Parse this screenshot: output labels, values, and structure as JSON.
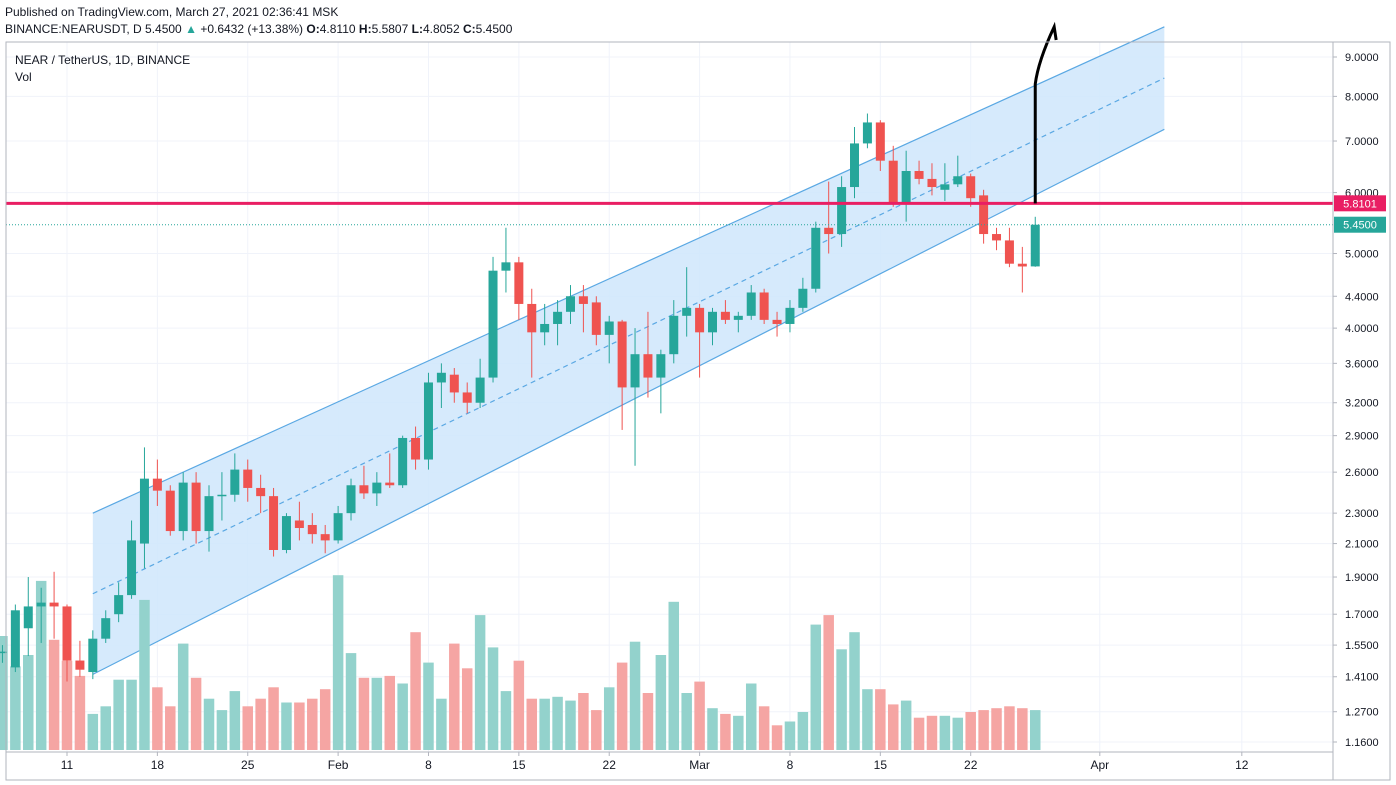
{
  "header": {
    "published": "Published on TradingView.com, March 27, 2021 02:36:41 MSK",
    "symbol": "BINANCE:NEARUSDT, D",
    "last": "5.4500",
    "change_arrow": "▲",
    "change": "+0.6432 (+13.38%)",
    "o_label": "O:",
    "o": "4.8110",
    "h_label": "H:",
    "h": "5.5807",
    "l_label": "L:",
    "l": "4.8052",
    "c_label": "C:",
    "c": "5.4500"
  },
  "legend": {
    "title": "NEAR / TetherUS, 1D, BINANCE",
    "volume": "Vol"
  },
  "colors": {
    "up": "#26a69a",
    "down": "#ef5350",
    "up_volume": "#93d2cc",
    "down_volume": "#f5a5a3",
    "channel_fill": "#cfe6fb",
    "channel_line": "#5aa8e3",
    "resistance": "#e91e63",
    "projection": "#000000"
  },
  "chart_data": {
    "type": "candlestick",
    "scale": "log",
    "price_ticks": [
      "9.0000",
      "8.0000",
      "7.0000",
      "6.0000",
      "5.0000",
      "4.4000",
      "4.0000",
      "3.6000",
      "3.2000",
      "2.9000",
      "2.6000",
      "2.3000",
      "2.1000",
      "1.9000",
      "1.7000",
      "1.5500",
      "1.4100",
      "1.2700",
      "1.1600"
    ],
    "x_ticks": [
      "11",
      "18",
      "25",
      "Feb",
      "8",
      "15",
      "22",
      "Mar",
      "8",
      "15",
      "22",
      "Apr",
      "12"
    ],
    "price_labels": [
      {
        "value": "5.8101",
        "price": 5.8101,
        "color": "#e91e63"
      },
      {
        "value": "5.4500",
        "price": 5.45,
        "color": "#26a69a"
      }
    ],
    "candles": [
      {
        "d": "2021-01-06",
        "o": 1.52,
        "h": 1.55,
        "l": 1.47,
        "c": 1.52,
        "v": 0.6
      },
      {
        "d": "2021-01-07",
        "o": 1.45,
        "h": 1.75,
        "l": 1.43,
        "c": 1.72,
        "v": 0.44
      },
      {
        "d": "2021-01-08",
        "o": 1.63,
        "h": 1.9,
        "l": 1.5,
        "c": 1.74,
        "v": 0.5
      },
      {
        "d": "2021-01-09",
        "o": 1.74,
        "h": 1.84,
        "l": 1.56,
        "c": 1.76,
        "v": 0.89
      },
      {
        "d": "2021-01-10",
        "o": 1.76,
        "h": 1.93,
        "l": 1.58,
        "c": 1.74,
        "v": 0.58
      },
      {
        "d": "2021-01-11",
        "o": 1.74,
        "h": 1.75,
        "l": 1.39,
        "c": 1.48,
        "v": 0.47
      },
      {
        "d": "2021-01-12",
        "o": 1.48,
        "h": 1.57,
        "l": 1.41,
        "c": 1.44,
        "v": 0.39
      },
      {
        "d": "2021-01-13",
        "o": 1.43,
        "h": 1.62,
        "l": 1.4,
        "c": 1.58,
        "v": 0.19
      },
      {
        "d": "2021-01-14",
        "o": 1.58,
        "h": 1.72,
        "l": 1.56,
        "c": 1.68,
        "v": 0.23
      },
      {
        "d": "2021-01-15",
        "o": 1.7,
        "h": 1.87,
        "l": 1.66,
        "c": 1.8,
        "v": 0.37
      },
      {
        "d": "2021-01-16",
        "o": 1.8,
        "h": 2.25,
        "l": 1.78,
        "c": 2.12,
        "v": 0.37
      },
      {
        "d": "2021-01-17",
        "o": 2.1,
        "h": 2.8,
        "l": 1.95,
        "c": 2.55,
        "v": 0.79
      },
      {
        "d": "2021-01-18",
        "o": 2.55,
        "h": 2.7,
        "l": 2.35,
        "c": 2.46,
        "v": 0.33
      },
      {
        "d": "2021-01-19",
        "o": 2.46,
        "h": 2.5,
        "l": 2.15,
        "c": 2.18,
        "v": 0.23
      },
      {
        "d": "2021-01-20",
        "o": 2.18,
        "h": 2.6,
        "l": 2.12,
        "c": 2.52,
        "v": 0.56
      },
      {
        "d": "2021-01-21",
        "o": 2.52,
        "h": 2.6,
        "l": 2.1,
        "c": 2.18,
        "v": 0.38
      },
      {
        "d": "2021-01-22",
        "o": 2.18,
        "h": 2.5,
        "l": 2.05,
        "c": 2.42,
        "v": 0.27
      },
      {
        "d": "2021-01-23",
        "o": 2.42,
        "h": 2.6,
        "l": 2.25,
        "c": 2.43,
        "v": 0.21
      },
      {
        "d": "2021-01-24",
        "o": 2.43,
        "h": 2.75,
        "l": 2.38,
        "c": 2.62,
        "v": 0.31
      },
      {
        "d": "2021-01-25",
        "o": 2.62,
        "h": 2.7,
        "l": 2.38,
        "c": 2.48,
        "v": 0.23
      },
      {
        "d": "2021-01-26",
        "o": 2.48,
        "h": 2.58,
        "l": 2.3,
        "c": 2.42,
        "v": 0.27
      },
      {
        "d": "2021-01-27",
        "o": 2.42,
        "h": 2.48,
        "l": 2.02,
        "c": 2.06,
        "v": 0.33
      },
      {
        "d": "2021-01-28",
        "o": 2.06,
        "h": 2.3,
        "l": 2.04,
        "c": 2.28,
        "v": 0.25
      },
      {
        "d": "2021-01-29",
        "o": 2.25,
        "h": 2.38,
        "l": 2.12,
        "c": 2.2,
        "v": 0.25
      },
      {
        "d": "2021-01-30",
        "o": 2.22,
        "h": 2.3,
        "l": 2.1,
        "c": 2.16,
        "v": 0.27
      },
      {
        "d": "2021-01-31",
        "o": 2.16,
        "h": 2.22,
        "l": 2.04,
        "c": 2.12,
        "v": 0.32
      },
      {
        "d": "2021-02-01",
        "o": 2.12,
        "h": 2.35,
        "l": 2.1,
        "c": 2.3,
        "v": 0.92
      },
      {
        "d": "2021-02-02",
        "o": 2.3,
        "h": 2.55,
        "l": 2.25,
        "c": 2.5,
        "v": 0.51
      },
      {
        "d": "2021-02-03",
        "o": 2.5,
        "h": 2.65,
        "l": 2.4,
        "c": 2.44,
        "v": 0.38
      },
      {
        "d": "2021-02-04",
        "o": 2.44,
        "h": 2.6,
        "l": 2.35,
        "c": 2.52,
        "v": 0.38
      },
      {
        "d": "2021-02-05",
        "o": 2.52,
        "h": 2.75,
        "l": 2.48,
        "c": 2.5,
        "v": 0.39
      },
      {
        "d": "2021-02-06",
        "o": 2.5,
        "h": 2.9,
        "l": 2.48,
        "c": 2.88,
        "v": 0.35
      },
      {
        "d": "2021-02-07",
        "o": 2.88,
        "h": 2.98,
        "l": 2.62,
        "c": 2.7,
        "v": 0.62
      },
      {
        "d": "2021-02-08",
        "o": 2.7,
        "h": 3.5,
        "l": 2.62,
        "c": 3.4,
        "v": 0.46
      },
      {
        "d": "2021-02-09",
        "o": 3.4,
        "h": 3.6,
        "l": 3.15,
        "c": 3.5,
        "v": 0.27
      },
      {
        "d": "2021-02-10",
        "o": 3.48,
        "h": 3.55,
        "l": 3.2,
        "c": 3.3,
        "v": 0.56
      },
      {
        "d": "2021-02-11",
        "o": 3.3,
        "h": 3.4,
        "l": 3.1,
        "c": 3.2,
        "v": 0.43
      },
      {
        "d": "2021-02-12",
        "o": 3.2,
        "h": 3.65,
        "l": 3.15,
        "c": 3.45,
        "v": 0.71
      },
      {
        "d": "2021-02-13",
        "o": 3.45,
        "h": 4.95,
        "l": 3.4,
        "c": 4.75,
        "v": 0.54
      },
      {
        "d": "2021-02-14",
        "o": 4.75,
        "h": 5.4,
        "l": 4.45,
        "c": 4.87,
        "v": 0.31
      },
      {
        "d": "2021-02-15",
        "o": 4.87,
        "h": 4.95,
        "l": 4.1,
        "c": 4.3,
        "v": 0.47
      },
      {
        "d": "2021-02-16",
        "o": 4.3,
        "h": 4.5,
        "l": 3.45,
        "c": 3.95,
        "v": 0.27
      },
      {
        "d": "2021-02-17",
        "o": 3.95,
        "h": 4.3,
        "l": 3.8,
        "c": 4.05,
        "v": 0.27
      },
      {
        "d": "2021-02-18",
        "o": 4.05,
        "h": 4.35,
        "l": 3.8,
        "c": 4.2,
        "v": 0.28
      },
      {
        "d": "2021-02-19",
        "o": 4.2,
        "h": 4.55,
        "l": 4.05,
        "c": 4.4,
        "v": 0.26
      },
      {
        "d": "2021-02-20",
        "o": 4.4,
        "h": 4.55,
        "l": 3.95,
        "c": 4.3,
        "v": 0.3
      },
      {
        "d": "2021-02-21",
        "o": 4.32,
        "h": 4.4,
        "l": 3.8,
        "c": 3.92,
        "v": 0.21
      },
      {
        "d": "2021-02-22",
        "o": 3.92,
        "h": 4.15,
        "l": 3.6,
        "c": 4.08,
        "v": 0.33
      },
      {
        "d": "2021-02-23",
        "o": 4.08,
        "h": 4.1,
        "l": 2.95,
        "c": 3.35,
        "v": 0.46
      },
      {
        "d": "2021-02-24",
        "o": 3.35,
        "h": 4.0,
        "l": 2.65,
        "c": 3.7,
        "v": 0.57
      },
      {
        "d": "2021-02-25",
        "o": 3.7,
        "h": 4.2,
        "l": 3.25,
        "c": 3.45,
        "v": 0.3
      },
      {
        "d": "2021-02-26",
        "o": 3.45,
        "h": 3.75,
        "l": 3.1,
        "c": 3.7,
        "v": 0.5
      },
      {
        "d": "2021-02-27",
        "o": 3.7,
        "h": 4.35,
        "l": 3.6,
        "c": 4.15,
        "v": 0.78
      },
      {
        "d": "2021-02-28",
        "o": 4.15,
        "h": 4.8,
        "l": 3.9,
        "c": 4.25,
        "v": 0.3
      },
      {
        "d": "2021-03-01",
        "o": 4.25,
        "h": 4.3,
        "l": 3.45,
        "c": 3.95,
        "v": 0.36
      },
      {
        "d": "2021-03-02",
        "o": 3.95,
        "h": 4.25,
        "l": 3.8,
        "c": 4.2,
        "v": 0.22
      },
      {
        "d": "2021-03-03",
        "o": 4.2,
        "h": 4.35,
        "l": 4.05,
        "c": 4.1,
        "v": 0.19
      },
      {
        "d": "2021-03-04",
        "o": 4.1,
        "h": 4.2,
        "l": 3.95,
        "c": 4.15,
        "v": 0.18
      },
      {
        "d": "2021-03-05",
        "o": 4.15,
        "h": 4.55,
        "l": 4.1,
        "c": 4.45,
        "v": 0.35
      },
      {
        "d": "2021-03-06",
        "o": 4.45,
        "h": 4.5,
        "l": 4.05,
        "c": 4.1,
        "v": 0.23
      },
      {
        "d": "2021-03-07",
        "o": 4.1,
        "h": 4.2,
        "l": 3.9,
        "c": 4.05,
        "v": 0.13
      },
      {
        "d": "2021-03-08",
        "o": 4.05,
        "h": 4.35,
        "l": 3.95,
        "c": 4.25,
        "v": 0.15
      },
      {
        "d": "2021-03-09",
        "o": 4.25,
        "h": 4.65,
        "l": 4.2,
        "c": 4.5,
        "v": 0.2
      },
      {
        "d": "2021-03-10",
        "o": 4.5,
        "h": 5.5,
        "l": 4.45,
        "c": 5.4,
        "v": 0.66
      },
      {
        "d": "2021-03-11",
        "o": 5.4,
        "h": 6.2,
        "l": 5.0,
        "c": 5.3,
        "v": 0.71
      },
      {
        "d": "2021-03-12",
        "o": 5.3,
        "h": 6.3,
        "l": 5.1,
        "c": 6.1,
        "v": 0.53
      },
      {
        "d": "2021-03-13",
        "o": 6.1,
        "h": 7.3,
        "l": 5.9,
        "c": 6.95,
        "v": 0.62
      },
      {
        "d": "2021-03-14",
        "o": 6.95,
        "h": 7.6,
        "l": 6.85,
        "c": 7.4,
        "v": 0.32
      },
      {
        "d": "2021-03-15",
        "o": 7.4,
        "h": 7.45,
        "l": 6.4,
        "c": 6.6,
        "v": 0.32
      },
      {
        "d": "2021-03-16",
        "o": 6.6,
        "h": 6.9,
        "l": 5.75,
        "c": 5.8,
        "v": 0.24
      },
      {
        "d": "2021-03-17",
        "o": 5.8,
        "h": 6.8,
        "l": 5.5,
        "c": 6.4,
        "v": 0.26
      },
      {
        "d": "2021-03-18",
        "o": 6.4,
        "h": 6.6,
        "l": 6.15,
        "c": 6.25,
        "v": 0.17
      },
      {
        "d": "2021-03-19",
        "o": 6.25,
        "h": 6.55,
        "l": 5.95,
        "c": 6.1,
        "v": 0.18
      },
      {
        "d": "2021-03-20",
        "o": 6.05,
        "h": 6.55,
        "l": 5.85,
        "c": 6.15,
        "v": 0.18
      },
      {
        "d": "2021-03-21",
        "o": 6.15,
        "h": 6.7,
        "l": 6.1,
        "c": 6.3,
        "v": 0.17
      },
      {
        "d": "2021-03-22",
        "o": 6.3,
        "h": 6.35,
        "l": 5.75,
        "c": 5.9,
        "v": 0.2
      },
      {
        "d": "2021-03-23",
        "o": 5.95,
        "h": 6.05,
        "l": 5.15,
        "c": 5.3,
        "v": 0.21
      },
      {
        "d": "2021-03-24",
        "o": 5.3,
        "h": 5.4,
        "l": 5.05,
        "c": 5.2,
        "v": 0.22
      },
      {
        "d": "2021-03-25",
        "o": 5.2,
        "h": 5.4,
        "l": 4.8,
        "c": 4.85,
        "v": 0.23
      },
      {
        "d": "2021-03-26",
        "o": 4.85,
        "h": 5.1,
        "l": 4.45,
        "c": 4.81,
        "v": 0.22
      },
      {
        "d": "2021-03-27",
        "o": 4.811,
        "h": 5.5807,
        "l": 4.8052,
        "c": 5.45,
        "v": 0.21
      }
    ],
    "channel": {
      "start": {
        "d": "2021-01-13",
        "upper": 2.3,
        "lower": 1.42
      },
      "end": {
        "d": "2021-04-06",
        "upper": 9.85,
        "lower": 7.25
      },
      "median_line": "dashed"
    },
    "resistance": 5.8101,
    "last_price": 5.45,
    "projection": [
      {
        "d": "2021-03-27",
        "p": 5.8101
      },
      {
        "d": "2021-03-27",
        "p": 8.3
      },
      {
        "d": "2021-03-28",
        "p": 9.85
      }
    ]
  }
}
